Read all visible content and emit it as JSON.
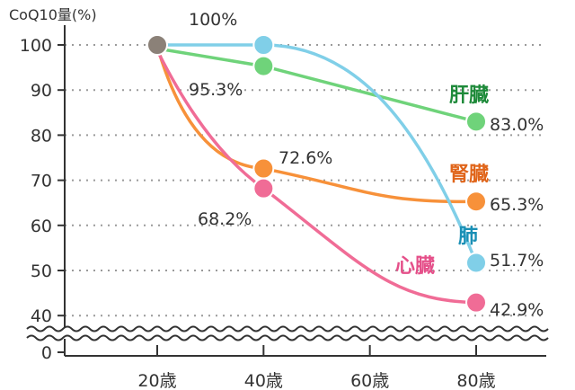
{
  "chart_data": {
    "type": "line",
    "ylabel": "CoQ10量(%)",
    "x": [
      20,
      40,
      60,
      80
    ],
    "x_tick_labels": [
      "20歳",
      "40歳",
      "60歳",
      "80歳"
    ],
    "y_ticks": [
      0,
      40,
      50,
      60,
      70,
      80,
      90,
      100
    ],
    "y_tick_labels": [
      "0",
      "40",
      "50",
      "60",
      "70",
      "80",
      "90",
      "100"
    ],
    "ylim": [
      0,
      100
    ],
    "axis_break": "between 0 and 40",
    "grid": "horizontal dotted",
    "start_point": {
      "x": 20,
      "y": 100,
      "color": "#8b8178"
    },
    "series": [
      {
        "name": "肺",
        "color": "#80cfe8",
        "label_color": "#1a8fb5",
        "x": [
          20,
          40,
          80
        ],
        "values": [
          100,
          100,
          51.7
        ],
        "point_labels": [
          "",
          "100%",
          "51.7%"
        ]
      },
      {
        "name": "肝臓",
        "color": "#6fd37a",
        "label_color": "#1e8a3a",
        "x": [
          20,
          40,
          80
        ],
        "values": [
          100,
          95.3,
          83.0
        ],
        "point_labels": [
          "",
          "95.3%",
          "83.0%"
        ]
      },
      {
        "name": "腎臓",
        "color": "#f7913a",
        "label_color": "#e0651a",
        "x": [
          20,
          40,
          80
        ],
        "values": [
          100,
          72.6,
          65.3
        ],
        "point_labels": [
          "",
          "72.6%",
          "65.3%"
        ]
      },
      {
        "name": "心臓",
        "color": "#f06c96",
        "label_color": "#e5508a",
        "x": [
          20,
          40,
          80
        ],
        "values": [
          100,
          68.2,
          42.9
        ],
        "point_labels": [
          "",
          "68.2%",
          "42.9%"
        ]
      }
    ]
  }
}
